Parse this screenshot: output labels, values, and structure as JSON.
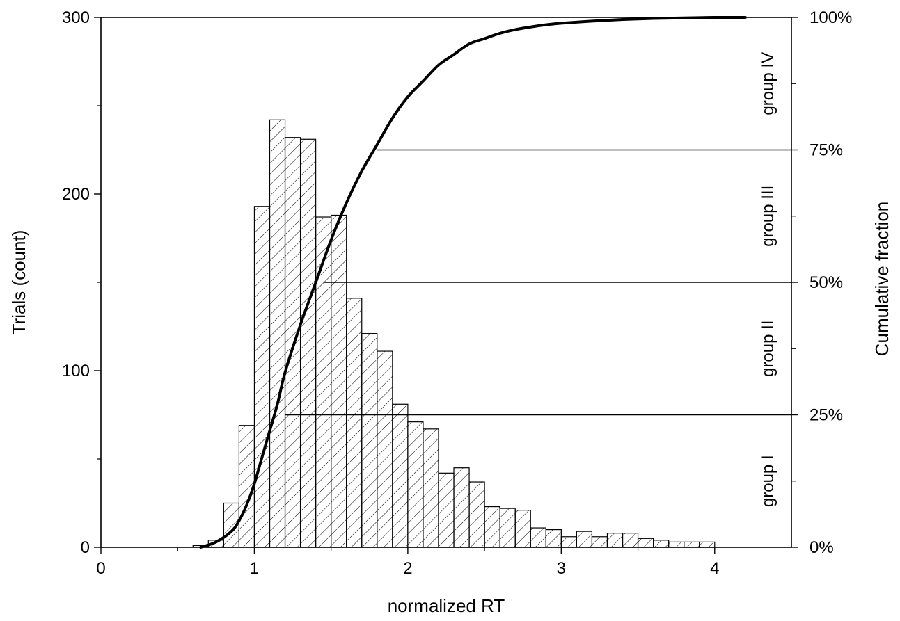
{
  "chart_data": {
    "type": "bar",
    "title": "",
    "xlabel": "normalized RT",
    "ylabel": "Trials (count)",
    "y2label": "Cumulative fraction",
    "xlim": [
      0,
      4.5
    ],
    "ylim": [
      0,
      300
    ],
    "y2lim": [
      0,
      100
    ],
    "grid": false,
    "x_ticks": [
      "0",
      "1",
      "2",
      "3",
      "4"
    ],
    "y_ticks": [
      "0",
      "100",
      "200",
      "300"
    ],
    "y2_ticks": [
      "0%",
      "25%",
      "50%",
      "75%",
      "100%"
    ],
    "bin_width": 0.1,
    "histogram": {
      "bin_starts": [
        0.6,
        0.7,
        0.8,
        0.9,
        1.0,
        1.1,
        1.2,
        1.3,
        1.4,
        1.5,
        1.6,
        1.7,
        1.8,
        1.9,
        2.0,
        2.1,
        2.2,
        2.3,
        2.4,
        2.5,
        2.6,
        2.7,
        2.8,
        2.9,
        3.0,
        3.1,
        3.2,
        3.3,
        3.4,
        3.5,
        3.6,
        3.7,
        3.8,
        3.9
      ],
      "counts": [
        1,
        4,
        25,
        69,
        193,
        242,
        232,
        231,
        187,
        188,
        141,
        121,
        111,
        81,
        71,
        67,
        42,
        45,
        37,
        23,
        22,
        21,
        11,
        10,
        6,
        9,
        6,
        8,
        8,
        5,
        4,
        3,
        3,
        3
      ]
    },
    "cumulative": {
      "x": [
        0.65,
        0.75,
        0.85,
        0.9,
        0.95,
        1.0,
        1.05,
        1.1,
        1.15,
        1.2,
        1.3,
        1.4,
        1.5,
        1.6,
        1.7,
        1.8,
        1.9,
        2.0,
        2.1,
        2.2,
        2.3,
        2.4,
        2.5,
        2.6,
        2.7,
        2.8,
        2.9,
        3.0,
        3.2,
        3.4,
        3.6,
        3.8,
        4.0,
        4.2
      ],
      "percent": [
        0,
        1,
        3,
        5,
        8,
        12,
        17,
        22,
        27,
        33,
        42,
        50,
        58,
        65,
        71,
        76,
        81,
        85,
        88,
        91,
        93,
        95,
        96,
        97,
        97.7,
        98.2,
        98.6,
        98.9,
        99.3,
        99.6,
        99.8,
        99.9,
        100,
        100
      ]
    },
    "quartiles": [
      {
        "percent": 25,
        "x_start": 1.2
      },
      {
        "percent": 50,
        "x_start": 1.45
      },
      {
        "percent": 75,
        "x_start": 1.8
      }
    ],
    "group_labels": [
      {
        "label": "group I",
        "percent_mid": 12.5
      },
      {
        "label": "group II",
        "percent_mid": 37.5
      },
      {
        "label": "group III",
        "percent_mid": 62.5
      },
      {
        "label": "group IV",
        "percent_mid": 87.5
      }
    ]
  }
}
